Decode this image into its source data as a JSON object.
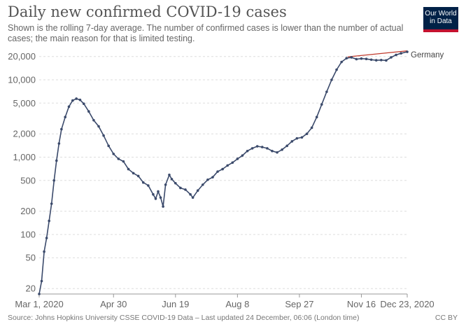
{
  "header": {
    "title": "Daily new confirmed COVID-19 cases",
    "subtitle": "Shown is the rolling 7-day average. The number of confirmed cases is lower than the number of actual cases; the main reason for that is limited testing."
  },
  "logo": {
    "line1": "Our World",
    "line2": "in Data"
  },
  "footer": {
    "source": "Source: Johns Hopkins University CSSE COVID-19 Data – Last updated 24 December, 06:06 (London time)",
    "license": "CC BY"
  },
  "colors": {
    "series": "#3b4a6b",
    "trend": "#c0392b",
    "grid": "#dddddd",
    "text": "#666666"
  },
  "chart_data": {
    "type": "line",
    "title": "Daily new confirmed COVID-19 cases",
    "yscale": "log",
    "ylim": [
      17,
      24000
    ],
    "xlim": [
      "2020-03-01",
      "2020-12-23"
    ],
    "yticks": [
      20,
      50,
      100,
      200,
      500,
      1000,
      2000,
      5000,
      10000,
      20000
    ],
    "ytick_labels": [
      "20",
      "50",
      "100",
      "200",
      "500",
      "1,000",
      "2,000",
      "5,000",
      "10,000",
      "20,000"
    ],
    "xticks": [
      "2020-03-01",
      "2020-04-30",
      "2020-06-19",
      "2020-08-08",
      "2020-09-27",
      "2020-11-16",
      "2020-12-23"
    ],
    "xtick_labels": [
      "Mar 1, 2020",
      "Apr 30",
      "Jun 19",
      "Aug 8",
      "Sep 27",
      "Nov 16",
      "Dec 23, 2020"
    ],
    "grid": true,
    "series": [
      {
        "name": "Germany",
        "points": [
          [
            "2020-03-01",
            17
          ],
          [
            "2020-03-03",
            25
          ],
          [
            "2020-03-05",
            60
          ],
          [
            "2020-03-07",
            90
          ],
          [
            "2020-03-09",
            150
          ],
          [
            "2020-03-11",
            250
          ],
          [
            "2020-03-13",
            500
          ],
          [
            "2020-03-15",
            900
          ],
          [
            "2020-03-17",
            1500
          ],
          [
            "2020-03-19",
            2300
          ],
          [
            "2020-03-22",
            3300
          ],
          [
            "2020-03-25",
            4500
          ],
          [
            "2020-03-28",
            5400
          ],
          [
            "2020-03-31",
            5700
          ],
          [
            "2020-04-03",
            5500
          ],
          [
            "2020-04-06",
            4900
          ],
          [
            "2020-04-10",
            3900
          ],
          [
            "2020-04-14",
            3000
          ],
          [
            "2020-04-18",
            2500
          ],
          [
            "2020-04-22",
            1900
          ],
          [
            "2020-04-26",
            1400
          ],
          [
            "2020-04-30",
            1100
          ],
          [
            "2020-05-04",
            950
          ],
          [
            "2020-05-08",
            880
          ],
          [
            "2020-05-12",
            700
          ],
          [
            "2020-05-16",
            620
          ],
          [
            "2020-05-20",
            570
          ],
          [
            "2020-05-24",
            470
          ],
          [
            "2020-05-28",
            430
          ],
          [
            "2020-06-01",
            330
          ],
          [
            "2020-06-03",
            290
          ],
          [
            "2020-06-05",
            360
          ],
          [
            "2020-06-07",
            300
          ],
          [
            "2020-06-09",
            230
          ],
          [
            "2020-06-11",
            440
          ],
          [
            "2020-06-14",
            590
          ],
          [
            "2020-06-16",
            520
          ],
          [
            "2020-06-19",
            460
          ],
          [
            "2020-06-23",
            400
          ],
          [
            "2020-06-27",
            380
          ],
          [
            "2020-07-01",
            330
          ],
          [
            "2020-07-03",
            300
          ],
          [
            "2020-07-07",
            370
          ],
          [
            "2020-07-11",
            440
          ],
          [
            "2020-07-15",
            510
          ],
          [
            "2020-07-19",
            550
          ],
          [
            "2020-07-23",
            650
          ],
          [
            "2020-07-27",
            700
          ],
          [
            "2020-07-31",
            780
          ],
          [
            "2020-08-04",
            850
          ],
          [
            "2020-08-08",
            950
          ],
          [
            "2020-08-12",
            1050
          ],
          [
            "2020-08-16",
            1200
          ],
          [
            "2020-08-20",
            1300
          ],
          [
            "2020-08-24",
            1380
          ],
          [
            "2020-08-28",
            1350
          ],
          [
            "2020-09-01",
            1300
          ],
          [
            "2020-09-05",
            1200
          ],
          [
            "2020-09-09",
            1150
          ],
          [
            "2020-09-13",
            1250
          ],
          [
            "2020-09-17",
            1400
          ],
          [
            "2020-09-21",
            1600
          ],
          [
            "2020-09-25",
            1750
          ],
          [
            "2020-09-29",
            1800
          ],
          [
            "2020-10-03",
            2000
          ],
          [
            "2020-10-07",
            2400
          ],
          [
            "2020-10-11",
            3300
          ],
          [
            "2020-10-15",
            4800
          ],
          [
            "2020-10-19",
            7000
          ],
          [
            "2020-10-23",
            10000
          ],
          [
            "2020-10-27",
            13500
          ],
          [
            "2020-10-31",
            17000
          ],
          [
            "2020-11-04",
            19000
          ],
          [
            "2020-11-08",
            19500
          ],
          [
            "2020-11-12",
            18500
          ],
          [
            "2020-11-16",
            18800
          ],
          [
            "2020-11-20",
            18600
          ],
          [
            "2020-11-24",
            18200
          ],
          [
            "2020-11-28",
            17900
          ],
          [
            "2020-12-02",
            18000
          ],
          [
            "2020-12-06",
            17800
          ],
          [
            "2020-12-10",
            19500
          ],
          [
            "2020-12-14",
            21000
          ],
          [
            "2020-12-18",
            22000
          ],
          [
            "2020-12-23",
            23000
          ]
        ]
      }
    ],
    "trend_line": [
      [
        "2020-11-05",
        19800
      ],
      [
        "2020-12-23",
        23700
      ]
    ],
    "legend": "end-of-line labels"
  }
}
